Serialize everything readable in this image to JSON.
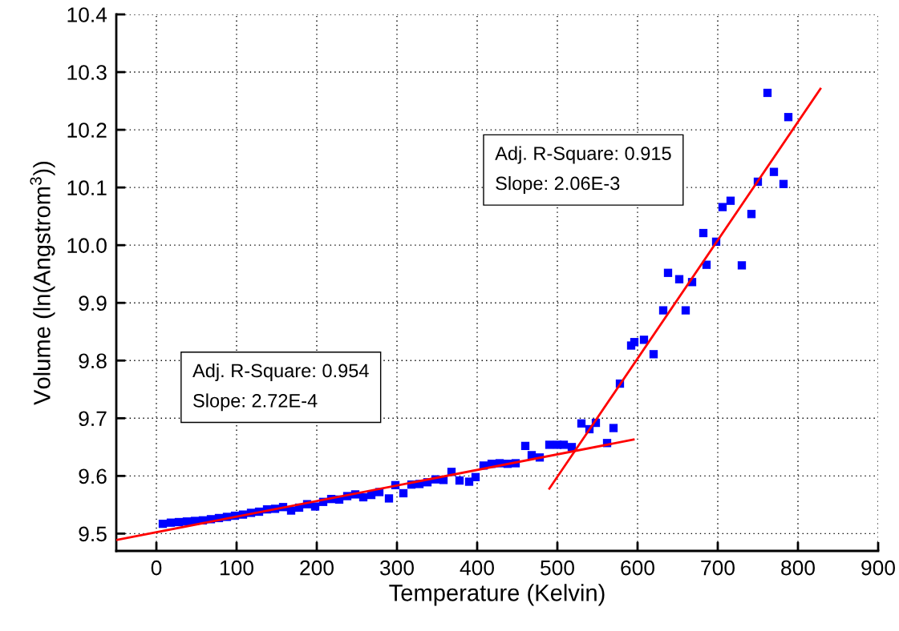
{
  "chart_data": {
    "type": "scatter",
    "xlabel": "Temperature (Kelvin)",
    "ylabel": "Volume (ln(Angstrom$^{3}$))",
    "xlim": [
      -50,
      900
    ],
    "ylim": [
      9.47,
      10.4
    ],
    "xticks": [
      0,
      100,
      200,
      300,
      400,
      500,
      600,
      700,
      800,
      900
    ],
    "yticks": [
      {
        "value": 9.5,
        "label": "9.5"
      },
      {
        "value": 9.6,
        "label": "9.6"
      },
      {
        "value": 9.7,
        "label": "9.7"
      },
      {
        "value": 9.8,
        "label": "9.8"
      },
      {
        "value": 9.9,
        "label": "9.9"
      },
      {
        "value": 10.0,
        "label": "10.0"
      },
      {
        "value": 10.1,
        "label": "10.1"
      },
      {
        "value": 10.2,
        "label": "10.2"
      },
      {
        "value": 10.3,
        "label": "10.3"
      },
      {
        "value": 10.4,
        "label": "10.4"
      }
    ],
    "grid": true,
    "marker": "square",
    "annotations": [
      "Adj. R-Square: 0.954\nSlope: 2.72E-4",
      "Adj. R-Square: 0.915\nSlope: 2.06E-3"
    ],
    "series": [
      {
        "color": "#0000ff",
        "x": [
          8,
          18,
          28,
          38,
          48,
          58,
          68,
          78,
          88,
          98,
          108,
          118,
          128,
          138,
          148,
          158,
          168,
          178,
          188,
          198,
          208,
          218,
          228,
          238,
          248,
          258,
          268,
          278,
          290,
          298,
          308,
          318,
          328,
          338,
          348,
          358,
          368,
          378,
          390,
          398,
          408,
          418,
          428,
          438,
          448,
          460,
          468,
          478,
          490,
          500,
          508,
          518,
          530,
          540,
          548,
          562,
          570,
          578,
          592,
          596,
          608,
          620,
          632,
          638,
          652,
          660,
          668,
          682,
          686,
          698,
          706,
          716,
          730,
          742,
          750,
          762,
          770,
          782,
          788
        ],
        "values": [
          9.517,
          9.519,
          9.52,
          9.521,
          9.522,
          9.523,
          9.525,
          9.527,
          9.529,
          9.531,
          9.533,
          9.536,
          9.538,
          9.542,
          9.543,
          9.546,
          9.54,
          9.545,
          9.551,
          9.547,
          9.555,
          9.56,
          9.559,
          9.565,
          9.568,
          9.563,
          9.567,
          9.572,
          9.561,
          9.584,
          9.57,
          9.585,
          9.586,
          9.589,
          9.594,
          9.593,
          9.607,
          9.592,
          9.59,
          9.598,
          9.618,
          9.621,
          9.622,
          9.621,
          9.622,
          9.652,
          9.636,
          9.632,
          9.654,
          9.654,
          9.654,
          9.65,
          9.691,
          9.681,
          9.692,
          9.657,
          9.683,
          9.76,
          9.826,
          9.832,
          9.836,
          9.811,
          9.887,
          9.952,
          9.941,
          9.887,
          9.936,
          10.021,
          9.966,
          10.006,
          10.066,
          10.077,
          9.965,
          10.054,
          10.11,
          10.264,
          10.127,
          10.106,
          10.222
        ]
      },
      {
        "type": "line",
        "color": "#ff0000",
        "marker": "none",
        "x": [
          -50,
          595
        ],
        "values": [
          9.489,
          9.663
        ]
      },
      {
        "type": "line",
        "color": "#ff0000",
        "marker": "none",
        "x": [
          490,
          828
        ],
        "values": [
          9.578,
          10.271
        ]
      }
    ]
  }
}
